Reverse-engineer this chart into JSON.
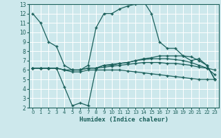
{
  "bg_color": "#cde8ec",
  "grid_color": "#b0d4d8",
  "line_color": "#1a5f5a",
  "marker": "+",
  "xlabel": "Humidex (Indice chaleur)",
  "xlim": [
    -0.5,
    23.5
  ],
  "ylim": [
    2,
    13
  ],
  "xticks": [
    0,
    1,
    2,
    3,
    4,
    5,
    6,
    7,
    8,
    9,
    10,
    11,
    12,
    13,
    14,
    15,
    16,
    17,
    18,
    19,
    20,
    21,
    22,
    23
  ],
  "yticks": [
    2,
    3,
    4,
    5,
    6,
    7,
    8,
    9,
    10,
    11,
    12,
    13
  ],
  "curves": [
    {
      "x": [
        0,
        1,
        2,
        3,
        4,
        5,
        6,
        7,
        8,
        9,
        10,
        11,
        12,
        13,
        14,
        15,
        16,
        17,
        18,
        19,
        20,
        21,
        22,
        23
      ],
      "y": [
        12,
        11,
        9,
        8.5,
        6.5,
        6,
        6,
        6.5,
        10.5,
        12,
        12,
        12.5,
        12.8,
        13,
        13.3,
        12,
        9,
        8.3,
        8.3,
        7.5,
        7.0,
        7.2,
        6.5,
        5.0
      ]
    },
    {
      "x": [
        0,
        1,
        2,
        3,
        4,
        5,
        6,
        7,
        8,
        9,
        10,
        11,
        12,
        13,
        14,
        15,
        16,
        17,
        18,
        19,
        20,
        21,
        22,
        23
      ],
      "y": [
        6.2,
        6.2,
        6.2,
        6.2,
        4.2,
        2.2,
        2.5,
        2.2,
        6.2,
        6.5,
        6.6,
        6.7,
        6.8,
        7.0,
        7.2,
        7.3,
        7.5,
        7.5,
        7.5,
        7.5,
        7.4,
        7.0,
        6.5,
        5.0
      ]
    },
    {
      "x": [
        0,
        1,
        2,
        3,
        4,
        5,
        6,
        7,
        8,
        9,
        10,
        11,
        12,
        13,
        14,
        15,
        16,
        17,
        18,
        19,
        20,
        21,
        22,
        23
      ],
      "y": [
        6.2,
        6.2,
        6.2,
        6.2,
        6.0,
        6.0,
        6.0,
        6.2,
        6.2,
        6.5,
        6.5,
        6.7,
        6.8,
        7.0,
        7.1,
        7.2,
        7.2,
        7.2,
        7.1,
        7.0,
        6.8,
        6.5,
        6.2,
        6.0
      ]
    },
    {
      "x": [
        0,
        1,
        2,
        3,
        4,
        5,
        6,
        7,
        8,
        9,
        10,
        11,
        12,
        13,
        14,
        15,
        16,
        17,
        18,
        19,
        20,
        21,
        22,
        23
      ],
      "y": [
        6.2,
        6.2,
        6.2,
        6.2,
        6.0,
        6.0,
        6.0,
        6.2,
        6.2,
        6.3,
        6.4,
        6.5,
        6.6,
        6.7,
        6.8,
        6.8,
        6.8,
        6.7,
        6.7,
        6.6,
        6.5,
        6.3,
        6.2,
        5.5
      ]
    },
    {
      "x": [
        0,
        1,
        2,
        3,
        4,
        5,
        6,
        7,
        8,
        9,
        10,
        11,
        12,
        13,
        14,
        15,
        16,
        17,
        18,
        19,
        20,
        21,
        22,
        23
      ],
      "y": [
        6.2,
        6.2,
        6.2,
        6.2,
        6.0,
        5.8,
        5.8,
        6.0,
        6.0,
        6.0,
        6.0,
        6.0,
        5.9,
        5.8,
        5.7,
        5.6,
        5.5,
        5.4,
        5.3,
        5.2,
        5.1,
        5.0,
        5.0,
        5.0
      ]
    }
  ]
}
